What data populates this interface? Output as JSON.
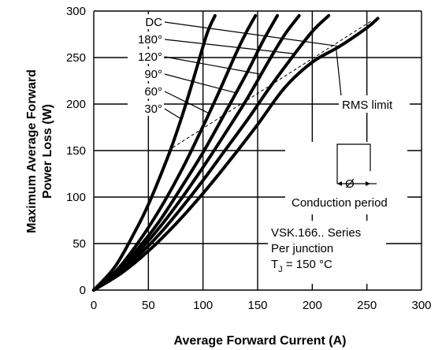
{
  "chart_data": {
    "type": "line",
    "xlabel": "Average Forward Current (A)",
    "ylabel_line1": "Maximum Average Forward",
    "ylabel_line2": "Power Loss (W)",
    "xlim": [
      0,
      300
    ],
    "ylim": [
      0,
      300
    ],
    "xticks": [
      "0",
      "50",
      "100",
      "150",
      "200",
      "250",
      "300"
    ],
    "yticks": [
      "0",
      "50",
      "100",
      "150",
      "200",
      "250",
      "300"
    ],
    "grid": true,
    "series": [
      {
        "name": "DC",
        "x": [
          0,
          25,
          50,
          75,
          100,
          125,
          150,
          175,
          200,
          225,
          250,
          260
        ],
        "y": [
          0,
          18,
          42,
          71,
          104,
          140,
          178,
          218,
          245,
          262,
          282,
          292
        ]
      },
      {
        "name": "180°",
        "x": [
          0,
          20,
          40,
          60,
          80,
          100,
          120,
          140,
          160,
          180,
          200,
          215
        ],
        "y": [
          0,
          16,
          36,
          60,
          88,
          118,
          150,
          182,
          216,
          248,
          278,
          295
        ]
      },
      {
        "name": "120°",
        "x": [
          0,
          20,
          40,
          60,
          80,
          100,
          120,
          140,
          160,
          175,
          188
        ],
        "y": [
          0,
          17,
          40,
          67,
          98,
          132,
          168,
          205,
          246,
          275,
          295
        ]
      },
      {
        "name": "90°",
        "x": [
          0,
          20,
          40,
          60,
          80,
          100,
          120,
          140,
          155,
          168
        ],
        "y": [
          0,
          18,
          44,
          74,
          110,
          148,
          190,
          233,
          268,
          295
        ]
      },
      {
        "name": "60°",
        "x": [
          0,
          20,
          40,
          60,
          80,
          100,
          115,
          130,
          140,
          148
        ],
        "y": [
          0,
          20,
          50,
          86,
          128,
          176,
          214,
          254,
          278,
          295
        ]
      },
      {
        "name": "30°",
        "x": [
          0,
          20,
          40,
          50,
          60,
          70,
          80,
          90,
          100,
          105,
          111
        ],
        "y": [
          0,
          26,
          68,
          92,
          120,
          150,
          184,
          222,
          262,
          280,
          295
        ]
      }
    ],
    "rms_limit": {
      "x": [
        68,
        255
      ],
      "y": [
        150,
        290
      ]
    },
    "annotations": {
      "rms_label": "RMS limit",
      "conduction_label": "Conduction period",
      "phi_symbol": "Ø",
      "series_name": "VSK.166..  Series",
      "per_junction": "Per junction",
      "tj_main": "T",
      "tj_sub": "J",
      "tj_value": " = 150 °C"
    }
  }
}
